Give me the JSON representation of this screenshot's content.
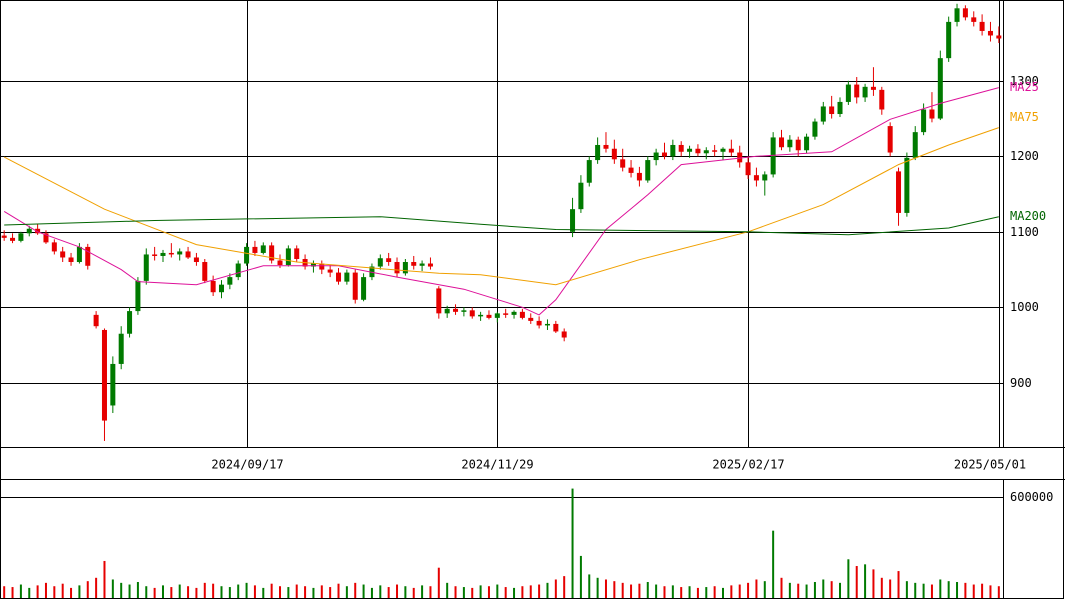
{
  "chart_data": {
    "type": "candlestick",
    "up_color": "#007a00",
    "down_color": "#e60000",
    "grid": true,
    "xlim": [
      -0.5,
      119.5
    ],
    "xticks": [
      {
        "value": 29,
        "label": "2024/09/17"
      },
      {
        "value": 59,
        "label": "2024/11/29"
      },
      {
        "value": 89,
        "label": "2025/02/17"
      },
      {
        "value": 119,
        "label": "2025/05/01"
      }
    ],
    "ylim": [
      815,
      1407
    ],
    "yticks": [
      900,
      1000,
      1100,
      1200,
      1300
    ],
    "volume_ylim": [
      0,
      701000
    ],
    "volume_yticks": [
      600000
    ],
    "open": [
      1095,
      1092,
      1088,
      1098,
      1104,
      1098,
      1086,
      1074,
      1066,
      1060,
      1080,
      990,
      970,
      870,
      925,
      965,
      995,
      1035,
      1070,
      1068,
      1072,
      1070,
      1074,
      1066,
      1060,
      1035,
      1020,
      1030,
      1040,
      1058,
      1080,
      1072,
      1082,
      1062,
      1056,
      1078,
      1064,
      1054,
      1058,
      1050,
      1046,
      1034,
      1046,
      1010,
      1040,
      1054,
      1065,
      1060,
      1045,
      1060,
      1055,
      1058,
      1025,
      992,
      998,
      994,
      996,
      988,
      990,
      986,
      992,
      990,
      994,
      986,
      982,
      976,
      978,
      968,
      1100,
      1130,
      1165,
      1195,
      1215,
      1210,
      1196,
      1185,
      1178,
      1168,
      1195,
      1205,
      1200,
      1215,
      1206,
      1210,
      1204,
      1208,
      1206,
      1210,
      1205,
      1192,
      1175,
      1168,
      1176,
      1225,
      1212,
      1222,
      1208,
      1226,
      1246,
      1266,
      1256,
      1272,
      1295,
      1278,
      1292,
      1288,
      1240,
      1180,
      1125,
      1198,
      1232,
      1262,
      1250,
      1330,
      1378,
      1396,
      1384,
      1378,
      1366,
      1360
    ],
    "high": [
      1102,
      1098,
      1100,
      1108,
      1110,
      1102,
      1090,
      1080,
      1072,
      1085,
      1084,
      995,
      972,
      935,
      975,
      1000,
      1040,
      1078,
      1080,
      1076,
      1085,
      1078,
      1080,
      1072,
      1064,
      1042,
      1036,
      1045,
      1062,
      1085,
      1088,
      1086,
      1086,
      1070,
      1082,
      1082,
      1070,
      1062,
      1062,
      1056,
      1052,
      1050,
      1050,
      1045,
      1058,
      1070,
      1072,
      1066,
      1064,
      1068,
      1062,
      1066,
      1028,
      1002,
      1004,
      1000,
      1000,
      994,
      996,
      994,
      998,
      996,
      998,
      992,
      988,
      984,
      982,
      972,
      1145,
      1175,
      1200,
      1225,
      1232,
      1222,
      1210,
      1195,
      1186,
      1200,
      1210,
      1218,
      1222,
      1220,
      1214,
      1216,
      1212,
      1215,
      1212,
      1222,
      1214,
      1200,
      1185,
      1180,
      1232,
      1235,
      1228,
      1226,
      1230,
      1250,
      1272,
      1280,
      1278,
      1300,
      1305,
      1296,
      1318,
      1292,
      1245,
      1185,
      1205,
      1240,
      1270,
      1285,
      1340,
      1385,
      1402,
      1400,
      1392,
      1388,
      1378,
      1372
    ],
    "low": [
      1088,
      1085,
      1086,
      1094,
      1096,
      1084,
      1070,
      1060,
      1055,
      1058,
      1050,
      972,
      823,
      860,
      918,
      960,
      990,
      1030,
      1062,
      1060,
      1066,
      1062,
      1064,
      1055,
      1032,
      1015,
      1012,
      1024,
      1036,
      1055,
      1068,
      1070,
      1058,
      1052,
      1054,
      1060,
      1050,
      1046,
      1044,
      1040,
      1030,
      1030,
      1005,
      1008,
      1036,
      1050,
      1055,
      1040,
      1042,
      1050,
      1048,
      1050,
      985,
      986,
      990,
      988,
      985,
      982,
      984,
      980,
      986,
      985,
      984,
      978,
      972,
      970,
      966,
      955,
      1093,
      1125,
      1160,
      1190,
      1205,
      1190,
      1180,
      1172,
      1160,
      1165,
      1188,
      1196,
      1195,
      1200,
      1198,
      1200,
      1196,
      1200,
      1195,
      1200,
      1185,
      1170,
      1160,
      1148,
      1172,
      1208,
      1206,
      1200,
      1204,
      1222,
      1242,
      1250,
      1252,
      1268,
      1270,
      1272,
      1280,
      1255,
      1200,
      1108,
      1120,
      1195,
      1228,
      1245,
      1248,
      1325,
      1372,
      1380,
      1372,
      1360,
      1352,
      1350
    ],
    "close": [
      1092,
      1088,
      1098,
      1104,
      1098,
      1086,
      1074,
      1066,
      1060,
      1080,
      1055,
      975,
      850,
      925,
      965,
      995,
      1035,
      1070,
      1068,
      1072,
      1070,
      1074,
      1066,
      1060,
      1035,
      1020,
      1030,
      1040,
      1058,
      1080,
      1072,
      1082,
      1062,
      1056,
      1078,
      1064,
      1054,
      1058,
      1050,
      1046,
      1034,
      1046,
      1010,
      1040,
      1054,
      1065,
      1060,
      1045,
      1060,
      1055,
      1058,
      1054,
      992,
      998,
      994,
      996,
      988,
      990,
      986,
      992,
      990,
      994,
      986,
      982,
      976,
      978,
      968,
      960,
      1130,
      1165,
      1195,
      1215,
      1210,
      1196,
      1185,
      1178,
      1168,
      1195,
      1205,
      1200,
      1215,
      1206,
      1210,
      1204,
      1208,
      1206,
      1210,
      1205,
      1192,
      1175,
      1168,
      1176,
      1225,
      1212,
      1222,
      1208,
      1226,
      1246,
      1266,
      1256,
      1272,
      1295,
      1278,
      1292,
      1288,
      1262,
      1205,
      1125,
      1198,
      1232,
      1262,
      1250,
      1330,
      1378,
      1396,
      1384,
      1378,
      1366,
      1360,
      1356
    ],
    "volume": [
      70000,
      65000,
      80000,
      60000,
      75000,
      90000,
      70000,
      85000,
      60000,
      75000,
      100000,
      120000,
      220000,
      110000,
      90000,
      80000,
      95000,
      70000,
      60000,
      75000,
      65000,
      80000,
      70000,
      60000,
      90000,
      85000,
      70000,
      65000,
      80000,
      90000,
      75000,
      60000,
      85000,
      70000,
      65000,
      80000,
      70000,
      60000,
      75000,
      65000,
      85000,
      70000,
      90000,
      80000,
      60000,
      75000,
      65000,
      80000,
      70000,
      60000,
      75000,
      70000,
      180000,
      90000,
      70000,
      65000,
      60000,
      75000,
      70000,
      80000,
      65000,
      60000,
      70000,
      75000,
      80000,
      90000,
      110000,
      130000,
      650000,
      250000,
      140000,
      120000,
      110000,
      100000,
      90000,
      80000,
      85000,
      95000,
      80000,
      70000,
      75000,
      65000,
      70000,
      60000,
      65000,
      70000,
      60000,
      75000,
      80000,
      90000,
      110000,
      100000,
      400000,
      120000,
      90000,
      85000,
      80000,
      95000,
      110000,
      100000,
      90000,
      230000,
      190000,
      200000,
      170000,
      120000,
      110000,
      160000,
      100000,
      90000,
      85000,
      80000,
      110000,
      100000,
      95000,
      90000,
      80000,
      85000,
      75000,
      70000
    ],
    "moving_averages": [
      {
        "name": "MA25",
        "color": "#dd1199",
        "x": [
          0,
          4,
          9,
          14,
          16,
          23,
          31,
          40,
          47,
          55,
          62,
          64,
          66,
          72,
          77,
          81,
          90,
          99,
          106,
          112,
          119
        ],
        "values": [
          1127,
          1100,
          1080,
          1050,
          1034,
          1030,
          1055,
          1055,
          1040,
          1024,
          1000,
          990,
          1010,
          1103,
          1149,
          1189,
          1200,
          1206,
          1249,
          1270,
          1291
        ]
      },
      {
        "name": "MA75",
        "color": "#f0a000",
        "x": [
          0,
          12,
          23,
          35,
          52,
          57,
          66,
          76,
          89,
          98,
          107,
          113,
          119
        ],
        "values": [
          1199,
          1130,
          1083,
          1060,
          1045,
          1043,
          1030,
          1063,
          1100,
          1136,
          1189,
          1215,
          1238
        ]
      },
      {
        "name": "MA200",
        "color": "#006400",
        "x": [
          0,
          18,
          45,
          57,
          66,
          89,
          101,
          113,
          119
        ],
        "values": [
          1109,
          1115,
          1120,
          1110,
          1103,
          1100,
          1096,
          1105,
          1120
        ]
      }
    ]
  }
}
